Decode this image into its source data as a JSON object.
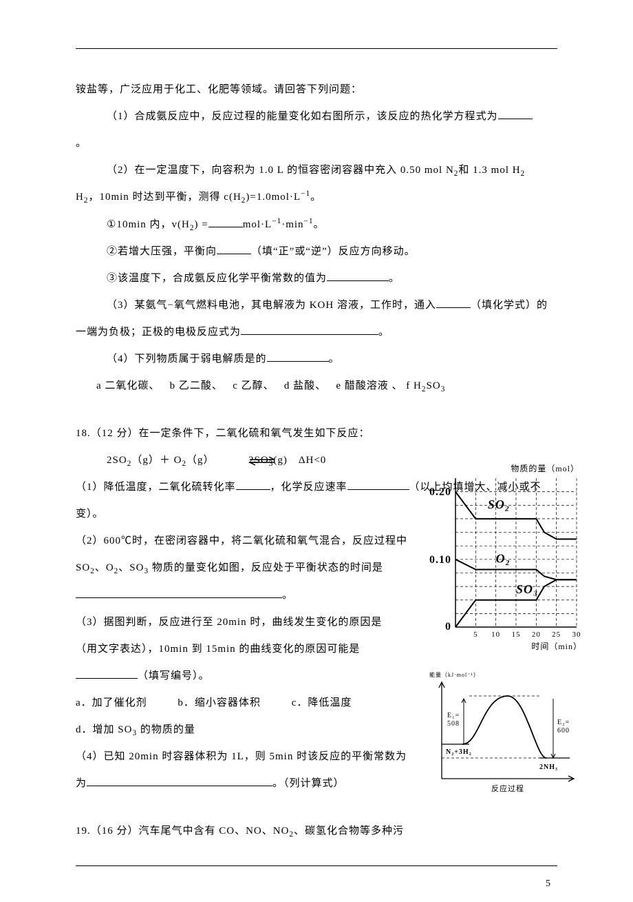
{
  "rule_color": "#000000",
  "intro": {
    "line0": "铵盐等，广泛应用于化工、化肥等领域。请回答下列问题：",
    "q1": "（1）合成氨反应中，反应过程的能量变化如右图所示，该反应的热化学方程式为",
    "period": "。",
    "q2": "（2）在一定温度下，向容积为 1.0 L 的恒容密闭容器中充入 0.50 mol N",
    "q2_sub1": "2",
    "q2_mid": "和 1.3 mol H",
    "q2_sub2": "2",
    "q2_end": "，10min 时达到平衡，测得 c(H",
    "q2_sub3": "2",
    "q2_end2": ")=1.0mol·L",
    "q2_sup": "−1",
    "q2_end3": "。",
    "q2_item1_pre": "①10min 内，v(H",
    "q2_item1_sub": "2",
    "q2_item1_mid": ") =",
    "q2_item1_unit": "mol·L",
    "q2_item1_sup1": "−1",
    "q2_item1_mid2": "·min",
    "q2_item1_sup2": "−1",
    "q2_item1_end": "。",
    "q2_item2_pre": "②若增大压强，平衡向",
    "q2_item2_post": "（填“正”或“逆”）反应方向移动。",
    "q2_item3_pre": "③该温度下，合成氨反应化学平衡常数的值为",
    "q2_item3_post": "。",
    "q3_pre": "（3）某氨气−氧气燃料电池，其电解液为 KOH 溶液，工作时，通入",
    "q3_mid": "（填化学式）的一端为负极；正极的电极反应式为",
    "q3_post": "。",
    "q4_pre": "（4）下列物质属于弱电解质是的",
    "q4_post": "。",
    "opts": {
      "a": "a 二氧化碳、",
      "b": "b 乙二酸、",
      "c": "c 乙醇、",
      "d": "d 盐酸、",
      "e": "e 醋酸溶液 、",
      "f": "f  H",
      "f_sub": "2",
      "f_end": "SO",
      "f_sub2": "3"
    }
  },
  "q18": {
    "stem": "18.（12 分）在一定条件下，二氧化硫和氧气发生如下反应：",
    "eq_lhs": "2SO",
    "eq_lhs_sub": "2",
    "eq_lhs2": "（g）＋ O",
    "eq_lhs2_sub": "2",
    "eq_lhs3": "（g）",
    "eq_rhs": "2SO",
    "eq_rhs_sub": "3",
    "eq_rhs2": "(g)　ΔH<0",
    "p1_pre": "（1）降低温度，二氧化硫转化率",
    "p1_mid": "，化学反应速率",
    "p1_post": "（以上均填增大、减小或不变）。",
    "p2_pre": "（2）600℃时，在密闭容器中，将二氧化硫和氧气混合，反应过程中 SO",
    "p2_sub1": "2",
    "p2_mid1": "、O",
    "p2_sub2": "2",
    "p2_mid2": "、SO",
    "p2_sub3": "3",
    "p2_mid3": " 物质的量变化如图，反应处于平衡状态的时间是",
    "p2_post": "。",
    "p3_pre": "（3）据图判断，反应进行至 20min 时，曲线发生变化的原因是",
    "p3_mid": "（用文字表达），10min 到 15min 的曲线变化的原因可能是",
    "p3_post": "（填写编号）。",
    "opts": {
      "a": "a．加了催化剂",
      "b": "b．缩小容器体积",
      "c": "c．降低温度",
      "d": "d．增加 SO",
      "d_sub": "3",
      "d_end": " 的物质的量"
    },
    "p4_pre": "（4）已知 20min 时容器体积为 1L，则 5min 时该反应的平衡常数为",
    "p4_post": "。（列计算式）"
  },
  "q19": {
    "stem": "19.（16 分）汽车尾气中含有 CO、NO、NO",
    "stem_sub": "2",
    "stem_end": "、碳氢化合物等多种污"
  },
  "chart": {
    "type": "line",
    "y_label": "物质的量（mol）",
    "x_label": "时间（min）",
    "x_ticks": [
      5,
      10,
      15,
      20,
      25,
      30
    ],
    "y_ticks_major": [
      0,
      0.1,
      0.2
    ],
    "x_range": [
      0,
      30
    ],
    "y_range": [
      0,
      0.22
    ],
    "grid_color": "#000000",
    "axis_color": "#000000",
    "line_color": "#000000",
    "line_width": 2,
    "dash": "4 3",
    "series": {
      "SO2": [
        [
          0,
          0.2
        ],
        [
          5,
          0.16
        ],
        [
          10,
          0.16
        ],
        [
          15,
          0.16
        ],
        [
          20,
          0.16
        ],
        [
          22,
          0.14
        ],
        [
          25,
          0.13
        ],
        [
          30,
          0.13
        ]
      ],
      "O2": [
        [
          0,
          0.1
        ],
        [
          5,
          0.085
        ],
        [
          10,
          0.085
        ],
        [
          15,
          0.085
        ],
        [
          20,
          0.085
        ],
        [
          22,
          0.075
        ],
        [
          25,
          0.07
        ],
        [
          30,
          0.07
        ]
      ],
      "SO3": [
        [
          0,
          0.0
        ],
        [
          5,
          0.04
        ],
        [
          10,
          0.04
        ],
        [
          15,
          0.04
        ],
        [
          20,
          0.04
        ],
        [
          22,
          0.06
        ],
        [
          25,
          0.07
        ],
        [
          30,
          0.07
        ]
      ]
    },
    "series_labels": {
      "SO2": "SO₂",
      "O2": "O₂",
      "SO3": "SO₃"
    }
  },
  "energy_diagram": {
    "y_label": "能量（kJ·mol⁻¹）",
    "x_label": "反应过程",
    "E1": "E₁=\n508",
    "E2": "E₂=\n600",
    "left_species": "N₂+3H₂",
    "right_species": "2NH₃",
    "axis_color": "#000000",
    "curve_color": "#000000",
    "dash": "4 3"
  },
  "page_number": "5"
}
